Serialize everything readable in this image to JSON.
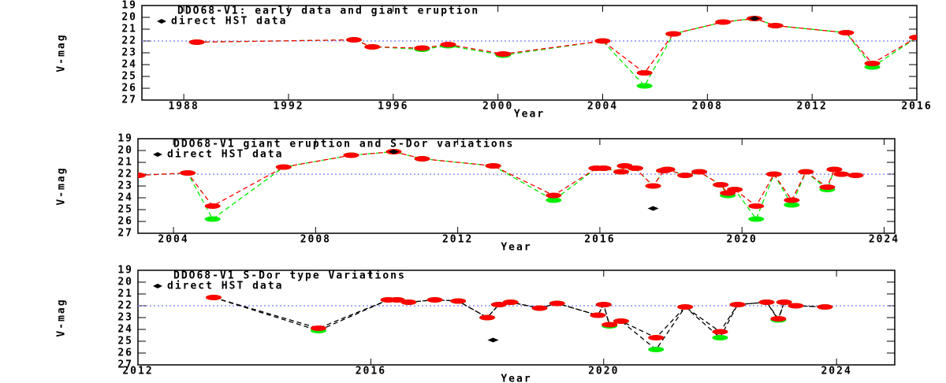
{
  "chart_data": [
    {
      "type": "line",
      "title": "DDO68-V1: early data and giant eruption",
      "xlabel": "Year",
      "ylabel": "V-mag",
      "xlim": [
        1986.4,
        2016
      ],
      "xticks": [
        1988,
        1992,
        1996,
        2000,
        2004,
        2008,
        2012,
        2016
      ],
      "ylim": [
        27,
        19
      ],
      "yticks": [
        19,
        20,
        21,
        22,
        23,
        24,
        25,
        26,
        27
      ],
      "hline": 22,
      "hline_color": "#7777ff",
      "series": [
        {
          "color": "#00ee00",
          "line_color": "#00ee00",
          "x": [
            1988.5,
            1994.5,
            1995.2,
            1997.1,
            1998.1,
            2000.2,
            2004.0,
            2005.6,
            2006.7,
            2008.6,
            2009.8,
            2010.6,
            2013.3,
            2014.3,
            2016.0
          ],
          "values": [
            22.1,
            21.9,
            22.5,
            22.7,
            22.4,
            23.2,
            22.0,
            25.8,
            21.4,
            20.4,
            20.1,
            20.7,
            21.3,
            24.2,
            21.7
          ]
        },
        {
          "color": "#ff0000",
          "line_color": "#ff0000",
          "x": [
            1988.5,
            1994.5,
            1995.2,
            1997.1,
            1998.1,
            2000.2,
            2004.0,
            2005.6,
            2006.7,
            2008.6,
            2009.8,
            2010.6,
            2013.3,
            2014.3,
            2016.0
          ],
          "values": [
            22.1,
            21.9,
            22.5,
            22.6,
            22.3,
            23.1,
            22.0,
            24.7,
            21.4,
            20.4,
            20.1,
            20.7,
            21.3,
            23.9,
            21.7
          ]
        },
        {
          "name": "direct HST data",
          "color": "#000000",
          "x": [
            2009.8
          ],
          "values": [
            20.1
          ]
        }
      ]
    },
    {
      "type": "line",
      "title": "DDO68-V1 giant eruption and S-Dor variations",
      "xlabel": "Year",
      "ylabel": "V-mag",
      "xlim": [
        2003,
        2024.3
      ],
      "xticks": [
        2004,
        2008,
        2012,
        2016,
        2020,
        2024
      ],
      "ylim": [
        27,
        19
      ],
      "yticks": [
        19,
        20,
        21,
        22,
        23,
        24,
        25,
        26,
        27
      ],
      "hline": 22,
      "hline_color": "#7777ff",
      "series": [
        {
          "color": "#00ee00",
          "line_color": "#00ee00",
          "x": [
            2003.0,
            2004.4,
            2005.1,
            2007.1,
            2009.0,
            2010.2,
            2011.0,
            2013.0,
            2014.7,
            2015.9,
            2016.1,
            2016.6,
            2016.7,
            2017.0,
            2017.5,
            2017.8,
            2017.9,
            2018.4,
            2018.8,
            2019.4,
            2019.6,
            2019.8,
            2020.4,
            2020.9,
            2021.4,
            2021.8,
            2022.4,
            2022.6,
            2022.8,
            2023.2
          ],
          "values": [
            22.1,
            21.9,
            25.8,
            21.4,
            20.4,
            20.1,
            20.7,
            21.3,
            24.2,
            21.5,
            21.5,
            21.8,
            21.3,
            21.5,
            23.0,
            21.7,
            21.6,
            22.1,
            21.8,
            22.9,
            23.8,
            23.3,
            25.8,
            22.0,
            24.6,
            21.8,
            23.3,
            21.6,
            22.0,
            22.1
          ]
        },
        {
          "color": "#ff0000",
          "line_color": "#ff0000",
          "x": [
            2003.0,
            2004.4,
            2005.1,
            2007.1,
            2009.0,
            2010.2,
            2011.0,
            2013.0,
            2014.7,
            2015.9,
            2016.1,
            2016.6,
            2016.7,
            2017.0,
            2017.5,
            2017.8,
            2017.9,
            2018.4,
            2018.8,
            2019.4,
            2019.6,
            2019.8,
            2020.4,
            2020.9,
            2021.4,
            2021.8,
            2022.4,
            2022.6,
            2022.8,
            2023.2
          ],
          "values": [
            22.1,
            21.9,
            24.7,
            21.4,
            20.4,
            20.1,
            20.7,
            21.3,
            23.8,
            21.5,
            21.5,
            21.8,
            21.3,
            21.5,
            23.0,
            21.7,
            21.6,
            22.1,
            21.8,
            22.9,
            23.6,
            23.3,
            24.7,
            22.0,
            24.2,
            21.8,
            23.1,
            21.6,
            22.0,
            22.1
          ]
        },
        {
          "name": "direct HST data",
          "color": "#000000",
          "x": [
            2010.2,
            2017.5
          ],
          "values": [
            20.1,
            24.9
          ]
        }
      ]
    },
    {
      "type": "line",
      "title": "DDO68-V1 S-Dor type Variations",
      "xlabel": "Year",
      "ylabel": "V-mag",
      "xlim": [
        2012,
        2025
      ],
      "xticks": [
        2012,
        2016,
        2020,
        2024
      ],
      "ylim": [
        27,
        19
      ],
      "yticks": [
        19,
        20,
        21,
        22,
        23,
        24,
        25,
        26,
        27
      ],
      "hline": 22,
      "hline_color": "#7777ff",
      "series": [
        {
          "color": "#00ee00",
          "line_color": "#000000",
          "x": [
            2013.3,
            2015.1,
            2016.3,
            2016.45,
            2016.65,
            2017.1,
            2017.5,
            2018.0,
            2018.2,
            2018.4,
            2018.9,
            2019.2,
            2019.9,
            2020.0,
            2020.1,
            2020.3,
            2020.9,
            2021.4,
            2022.0,
            2022.3,
            2022.8,
            2023.0,
            2023.1,
            2023.3,
            2023.8
          ],
          "values": [
            21.3,
            24.1,
            21.5,
            21.5,
            21.7,
            21.5,
            21.6,
            23.0,
            21.9,
            21.7,
            22.2,
            21.8,
            22.8,
            21.9,
            23.7,
            23.3,
            25.7,
            22.1,
            24.7,
            21.9,
            21.7,
            23.2,
            21.7,
            22.0,
            22.1
          ]
        },
        {
          "color": "#ff0000",
          "line_color": "#000000",
          "x": [
            2013.3,
            2015.1,
            2016.3,
            2016.45,
            2016.65,
            2017.1,
            2017.5,
            2018.0,
            2018.2,
            2018.4,
            2018.9,
            2019.2,
            2019.9,
            2020.0,
            2020.1,
            2020.3,
            2020.9,
            2021.4,
            2022.0,
            2022.3,
            2022.8,
            2023.0,
            2023.1,
            2023.3,
            2023.8
          ],
          "values": [
            21.3,
            23.9,
            21.5,
            21.5,
            21.7,
            21.5,
            21.6,
            23.0,
            21.9,
            21.7,
            22.2,
            21.8,
            22.8,
            21.9,
            23.6,
            23.3,
            24.7,
            22.1,
            24.2,
            21.9,
            21.7,
            23.1,
            21.7,
            22.0,
            22.1
          ]
        },
        {
          "name": "direct HST data",
          "color": "#000000",
          "x": [
            2018.1
          ],
          "values": [
            24.9
          ]
        }
      ]
    }
  ]
}
